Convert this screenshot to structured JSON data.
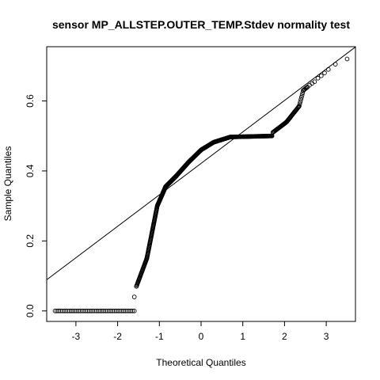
{
  "chart_data": {
    "type": "scatter",
    "title": "sensor MP_ALLSTEP.OUTER_TEMP.Stdev normality test",
    "xlabel": "Theoretical Quantiles",
    "ylabel": "Sample Quantiles",
    "xlim": [
      -3.7,
      3.7
    ],
    "ylim": [
      -0.03,
      0.755
    ],
    "xticks": [
      -3,
      -2,
      -1,
      0,
      1,
      2,
      3
    ],
    "yticks": [
      0.0,
      0.2,
      0.4,
      0.6
    ],
    "ytick_labels": [
      "0.0",
      "0.2",
      "0.4",
      "0.6"
    ],
    "reference_line": {
      "intercept": 0.4216,
      "slope": 0.0899
    },
    "series": [
      {
        "segments": [
          {
            "from": [
              -3.5,
              0.0
            ],
            "to": [
              -1.6,
              0.0
            ],
            "n": 45
          },
          {
            "from": [
              -1.6,
              0.04
            ],
            "to": [
              -1.6,
              0.04
            ],
            "n": 1
          },
          {
            "from": [
              -1.55,
              0.07
            ],
            "to": [
              -1.3,
              0.15
            ],
            "n": 30
          },
          {
            "from": [
              -1.3,
              0.15
            ],
            "to": [
              -1.05,
              0.3
            ],
            "n": 60
          },
          {
            "from": [
              -1.05,
              0.3
            ],
            "to": [
              -0.85,
              0.355
            ],
            "n": 50
          },
          {
            "from": [
              -0.85,
              0.355
            ],
            "to": [
              -0.6,
              0.385
            ],
            "n": 50
          },
          {
            "from": [
              -0.6,
              0.385
            ],
            "to": [
              -0.3,
              0.425
            ],
            "n": 60
          },
          {
            "from": [
              -0.3,
              0.425
            ],
            "to": [
              0.0,
              0.46
            ],
            "n": 60
          },
          {
            "from": [
              0.0,
              0.46
            ],
            "to": [
              0.3,
              0.482
            ],
            "n": 50
          },
          {
            "from": [
              0.3,
              0.482
            ],
            "to": [
              0.7,
              0.497
            ],
            "n": 60
          },
          {
            "from": [
              0.7,
              0.497
            ],
            "to": [
              1.7,
              0.5
            ],
            "n": 70
          },
          {
            "from": [
              1.72,
              0.51
            ],
            "to": [
              2.05,
              0.54
            ],
            "n": 22
          },
          {
            "from": [
              2.05,
              0.54
            ],
            "to": [
              2.35,
              0.585
            ],
            "n": 24
          },
          {
            "from": [
              2.35,
              0.585
            ],
            "to": [
              2.45,
              0.63
            ],
            "n": 8
          },
          {
            "from": [
              2.45,
              0.63
            ],
            "to": [
              2.55,
              0.64
            ],
            "n": 6
          }
        ],
        "points": [
          [
            2.6,
            0.645
          ],
          [
            2.66,
            0.65
          ],
          [
            2.72,
            0.655
          ],
          [
            2.8,
            0.665
          ],
          [
            2.88,
            0.672
          ],
          [
            2.96,
            0.68
          ],
          [
            3.05,
            0.69
          ],
          [
            3.22,
            0.705
          ],
          [
            3.5,
            0.72
          ]
        ]
      }
    ]
  }
}
